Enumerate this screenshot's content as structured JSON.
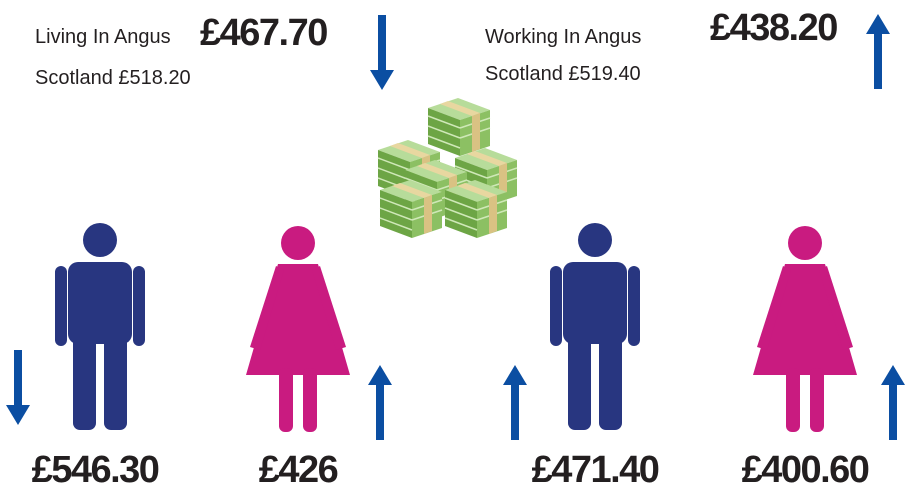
{
  "living": {
    "label": "Living In Angus",
    "value": "£467.70",
    "scotland": "Scotland £518.20"
  },
  "working": {
    "label": "Working In Angus",
    "value": "£438.20",
    "scotland": "Scotland £519.40"
  },
  "figures": [
    {
      "value": "£546.30"
    },
    {
      "value": "£426"
    },
    {
      "value": "£471.40"
    },
    {
      "value": "£400.60"
    }
  ]
}
